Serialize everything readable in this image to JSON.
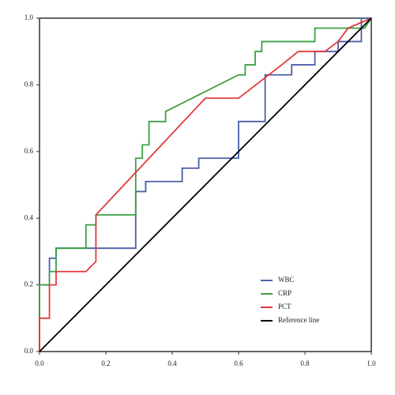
{
  "chart_data": {
    "type": "line",
    "xlim": [
      0,
      1
    ],
    "ylim": [
      0,
      1
    ],
    "xticks": [
      {
        "value": 0,
        "label": "0.0"
      },
      {
        "value": 0.2,
        "label": "0.2"
      },
      {
        "value": 0.4,
        "label": "0.4"
      },
      {
        "value": 0.6,
        "label": "0.6"
      },
      {
        "value": 0.8,
        "label": "0.8"
      },
      {
        "value": 1,
        "label": "1.0"
      }
    ],
    "yticks": [
      {
        "value": 0,
        "label": "0.0"
      },
      {
        "value": 0.2,
        "label": "0.2"
      },
      {
        "value": 0.4,
        "label": "0.4"
      },
      {
        "value": 0.6,
        "label": "0.6"
      },
      {
        "value": 0.8,
        "label": "0.8"
      },
      {
        "value": 1,
        "label": "1.0"
      }
    ],
    "legend": "lower right",
    "series": [
      {
        "name": "WBC",
        "color": "#4a5fa8",
        "x": [
          0,
          0,
          0.03,
          0.03,
          0.05,
          0.05,
          0.29,
          0.29,
          0.32,
          0.32,
          0.43,
          0.43,
          0.48,
          0.48,
          0.6,
          0.6,
          0.68,
          0.68,
          0.76,
          0.76,
          0.83,
          0.83,
          0.9,
          0.9,
          0.97,
          0.97,
          1
        ],
        "values": [
          0,
          0.2,
          0.2,
          0.28,
          0.28,
          0.31,
          0.31,
          0.48,
          0.48,
          0.51,
          0.51,
          0.55,
          0.55,
          0.58,
          0.58,
          0.69,
          0.69,
          0.83,
          0.83,
          0.86,
          0.86,
          0.9,
          0.9,
          0.93,
          0.93,
          1,
          1
        ]
      },
      {
        "name": "CRP",
        "color": "#3aa043",
        "x": [
          0,
          0,
          0.03,
          0.03,
          0.05,
          0.05,
          0.14,
          0.14,
          0.17,
          0.17,
          0.29,
          0.29,
          0.31,
          0.31,
          0.33,
          0.33,
          0.38,
          0.38,
          0.6,
          0.62,
          0.62,
          0.65,
          0.65,
          0.67,
          0.67,
          0.83,
          0.83,
          0.98,
          1
        ],
        "values": [
          0,
          0.2,
          0.2,
          0.24,
          0.24,
          0.31,
          0.31,
          0.38,
          0.38,
          0.41,
          0.41,
          0.58,
          0.58,
          0.62,
          0.62,
          0.69,
          0.69,
          0.72,
          0.83,
          0.83,
          0.86,
          0.86,
          0.9,
          0.9,
          0.93,
          0.93,
          0.97,
          0.97,
          1
        ]
      },
      {
        "name": "PCT",
        "color": "#e0393b",
        "x": [
          0,
          0,
          0.03,
          0.03,
          0.05,
          0.05,
          0.14,
          0.17,
          0.17,
          0.5,
          0.6,
          0.73,
          0.78,
          0.86,
          0.9,
          0.93,
          1
        ],
        "values": [
          0,
          0.1,
          0.1,
          0.2,
          0.2,
          0.24,
          0.24,
          0.27,
          0.41,
          0.76,
          0.76,
          0.86,
          0.9,
          0.9,
          0.93,
          0.97,
          1
        ]
      },
      {
        "name": "Reference line",
        "color": "#000000",
        "x": [
          0,
          1
        ],
        "values": [
          0,
          1
        ]
      }
    ]
  }
}
